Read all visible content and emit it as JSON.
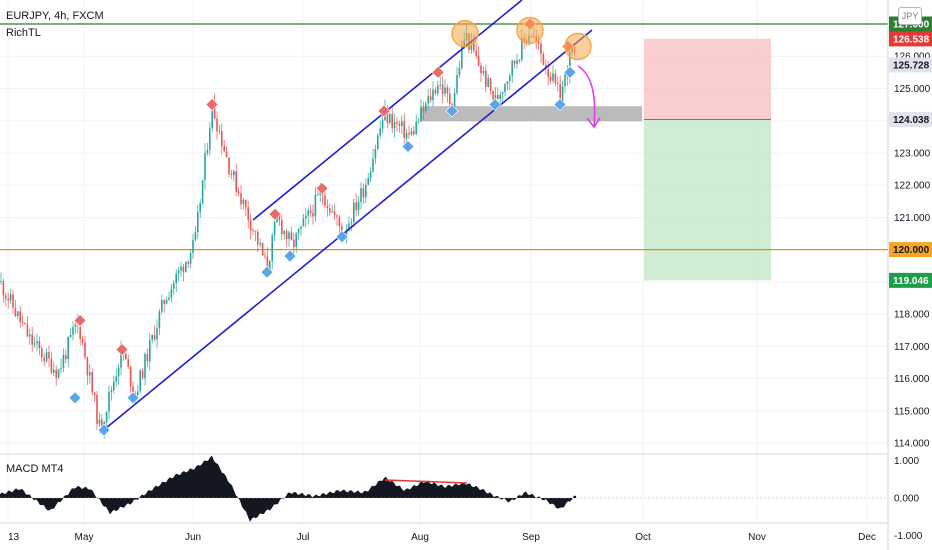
{
  "header": {
    "symbol": "EURJPY, 4h, FXCM",
    "indicator": "RichTL",
    "currency": "JPY"
  },
  "macd": {
    "label": "MACD MT4",
    "ticks": [
      "1.000",
      "0.000",
      "-1.000"
    ]
  },
  "colors": {
    "up_candle": "#26a69a",
    "down_candle": "#ef5350",
    "channel": "#1c1fd1",
    "resistance": "#2e7d32",
    "support_level": "#e6900f",
    "buy_marker": "#5aa6e6",
    "sell_marker": "#ea6a6a",
    "peak_circle": "#f7a84a",
    "stop_zone": "#f9c6c7",
    "target_zone": "#c8e9cb",
    "arrow": "#e040e0"
  },
  "chart_data": {
    "type": "candlestick",
    "x_labels": [
      "13",
      "May",
      "Jun",
      "Jul",
      "Aug",
      "Sep",
      "Oct",
      "Nov",
      "Dec"
    ],
    "y_ticks": [
      "114.000",
      "115.000",
      "116.000",
      "117.000",
      "118.000",
      "119.000",
      "120.000",
      "121.000",
      "122.000",
      "123.000",
      "124.000",
      "125.000",
      "126.000",
      "127.000"
    ],
    "price_labels": [
      {
        "value": "127.000",
        "style": "resistance"
      },
      {
        "value": "126.538",
        "style": "stop"
      },
      {
        "value": "125.728",
        "style": "current"
      },
      {
        "value": "124.038",
        "style": "entry"
      },
      {
        "value": "120.000",
        "style": "support"
      },
      {
        "value": "119.046",
        "style": "target"
      }
    ],
    "price_path": [
      [
        0,
        119.0
      ],
      [
        30,
        117.2
      ],
      [
        58,
        116.2
      ],
      [
        78,
        117.8
      ],
      [
        100,
        114.4
      ],
      [
        122,
        116.9
      ],
      [
        135,
        115.5
      ],
      [
        165,
        118.5
      ],
      [
        195,
        120.2
      ],
      [
        212,
        124.5
      ],
      [
        230,
        122.5
      ],
      [
        255,
        120.5
      ],
      [
        267,
        119.4
      ],
      [
        277,
        121.0
      ],
      [
        292,
        120.1
      ],
      [
        322,
        121.8
      ],
      [
        343,
        120.5
      ],
      [
        365,
        122.0
      ],
      [
        384,
        124.2
      ],
      [
        410,
        123.5
      ],
      [
        438,
        125.2
      ],
      [
        452,
        124.5
      ],
      [
        465,
        126.7
      ],
      [
        495,
        124.6
      ],
      [
        520,
        126.2
      ],
      [
        530,
        126.8
      ],
      [
        545,
        125.8
      ],
      [
        560,
        124.7
      ],
      [
        572,
        126.2
      ],
      [
        576,
        125.7
      ]
    ],
    "sell_markers": [
      [
        80,
        117.8
      ],
      [
        122,
        116.9
      ],
      [
        212,
        124.5
      ],
      [
        275,
        121.1
      ],
      [
        322,
        121.9
      ],
      [
        384,
        124.3
      ],
      [
        438,
        125.5
      ],
      [
        530,
        127.0
      ],
      [
        568,
        126.3
      ]
    ],
    "buy_markers": [
      [
        75,
        115.4
      ],
      [
        104,
        114.4
      ],
      [
        133,
        115.4
      ],
      [
        267,
        119.3
      ],
      [
        290,
        119.8
      ],
      [
        342,
        120.4
      ],
      [
        408,
        123.2
      ],
      [
        452,
        124.3
      ],
      [
        495,
        124.5
      ],
      [
        560,
        124.5
      ],
      [
        570,
        125.5
      ]
    ],
    "peak_circles": [
      [
        465,
        126.7
      ],
      [
        530,
        126.8
      ],
      [
        578,
        126.3
      ]
    ],
    "macd_histogram": [
      [
        0,
        0.1
      ],
      [
        20,
        0.25
      ],
      [
        50,
        -0.35
      ],
      [
        75,
        0.3
      ],
      [
        90,
        0.25
      ],
      [
        110,
        -0.4
      ],
      [
        130,
        -0.15
      ],
      [
        150,
        0.2
      ],
      [
        175,
        0.6
      ],
      [
        195,
        0.8
      ],
      [
        212,
        1.1
      ],
      [
        230,
        0.4
      ],
      [
        250,
        -0.6
      ],
      [
        270,
        -0.3
      ],
      [
        290,
        0.15
      ],
      [
        315,
        0.05
      ],
      [
        340,
        0.2
      ],
      [
        365,
        0.15
      ],
      [
        385,
        0.55
      ],
      [
        405,
        0.2
      ],
      [
        425,
        0.45
      ],
      [
        445,
        0.3
      ],
      [
        465,
        0.4
      ],
      [
        480,
        0.25
      ],
      [
        495,
        0.05
      ],
      [
        510,
        -0.1
      ],
      [
        525,
        0.15
      ],
      [
        545,
        -0.05
      ],
      [
        560,
        -0.3
      ],
      [
        575,
        0.05
      ]
    ]
  }
}
